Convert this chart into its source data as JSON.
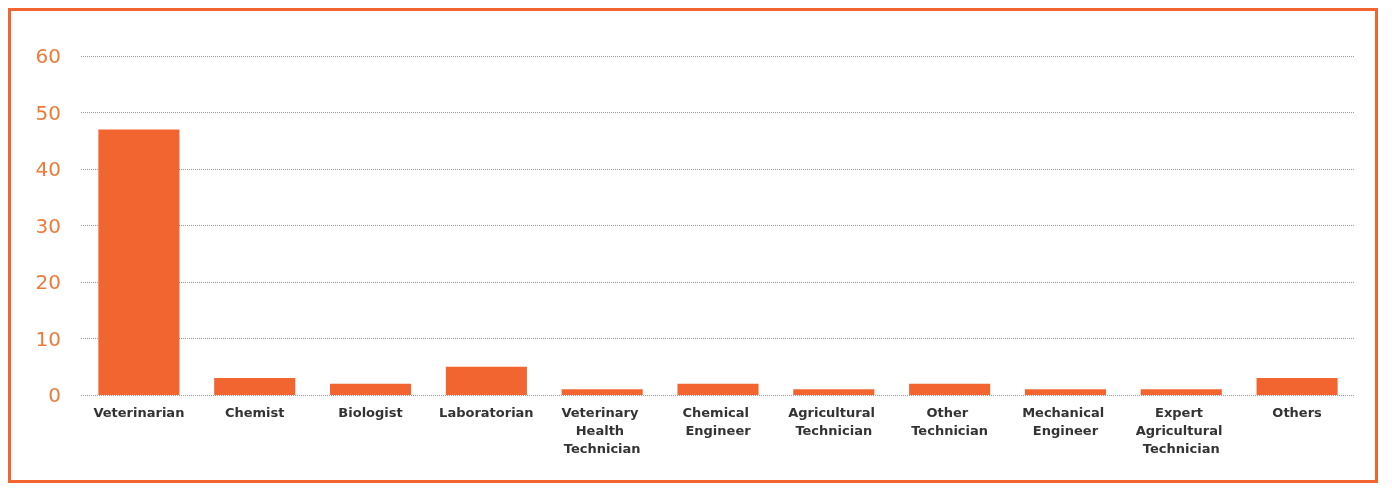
{
  "chart_data": {
    "type": "bar",
    "categories": [
      "Veterinarian",
      "Chemist",
      "Biologist",
      "Laboratorian",
      "Veterinary Health Technician",
      "Chemical Engineer",
      "Agricultural Technician",
      "Other Technician",
      "Mechanical Engineer",
      "Expert Agricultural Technician",
      "Others"
    ],
    "values": [
      47,
      3,
      2,
      5,
      1,
      2,
      1,
      2,
      1,
      1,
      3
    ],
    "color": "#f26430",
    "ylim": [
      0,
      60
    ],
    "yticks": [
      0,
      10,
      20,
      30,
      40,
      50,
      60
    ],
    "grid": "y"
  }
}
